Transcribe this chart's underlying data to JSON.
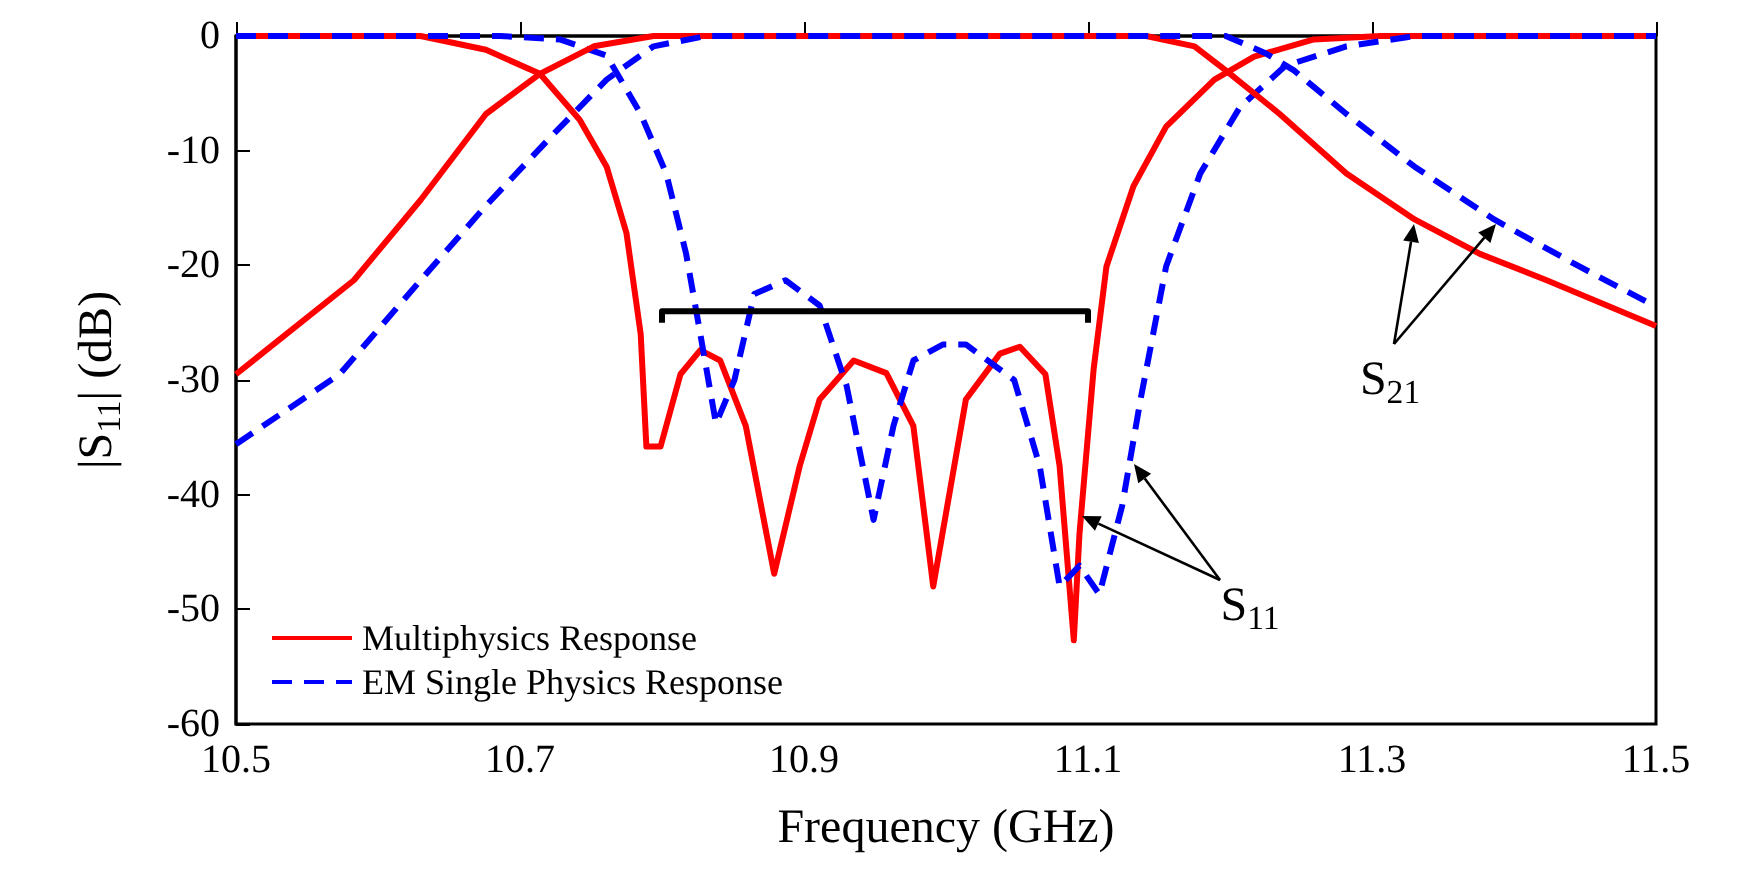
{
  "chart_data": {
    "type": "line",
    "xlabel": "Frequency (GHz)",
    "ylabel": "|S$_{11}$| (dB)",
    "xlim": [
      10.5,
      11.5
    ],
    "xticks": [
      10.5,
      10.7,
      10.9,
      11.1,
      11.3,
      11.5
    ],
    "ylim": [
      -60,
      0
    ],
    "yticks": [
      -60,
      -50,
      -40,
      -30,
      -20,
      -10,
      0
    ],
    "grid": false,
    "legend": "bottom left",
    "marker": "none",
    "series": [
      {
        "name": "Multiphysics Response",
        "color": "#ff0000",
        "line_style": "solid",
        "x": [
          10.5,
          10.63,
          10.676,
          10.714,
          10.742,
          10.761,
          10.775,
          10.785,
          10.789,
          10.799,
          10.813,
          10.827,
          10.841,
          10.859,
          10.879,
          10.897,
          10.911,
          10.935,
          10.958,
          10.977,
          10.991,
          11.014,
          11.038,
          11.052,
          11.07,
          11.08,
          11.09,
          11.094,
          11.104,
          11.113,
          11.132,
          11.155,
          11.189,
          11.217,
          11.259,
          11.306,
          11.5
        ],
        "values": [
          0,
          0,
          -1.2,
          -3.3,
          -7.3,
          -11.4,
          -17.2,
          -26,
          -35.8,
          -35.8,
          -29.5,
          -27.4,
          -28.3,
          -34,
          -46.9,
          -37.5,
          -31.7,
          -28.3,
          -29.4,
          -34,
          -48,
          -31.7,
          -27.7,
          -27.1,
          -29.5,
          -37.5,
          -52.7,
          -43.4,
          -29,
          -20.1,
          -13.1,
          -7.9,
          -3.8,
          -1.8,
          -0.3,
          0,
          0
        ]
      },
      {
        "name": "EM Single Physics Response",
        "color": "#0000ff",
        "line_style": "dashed",
        "x": [
          10.5,
          10.686,
          10.728,
          10.761,
          10.785,
          10.803,
          10.817,
          10.827,
          10.838,
          10.851,
          10.865,
          10.887,
          10.911,
          10.93,
          10.949,
          10.963,
          10.977,
          10.998,
          11.014,
          11.048,
          11.066,
          11.08,
          11.094,
          11.108,
          11.124,
          11.137,
          11.155,
          11.179,
          11.207,
          11.239,
          11.282,
          11.33,
          11.5
        ],
        "values": [
          0,
          0,
          -0.3,
          -1.7,
          -6.8,
          -12,
          -19,
          -26,
          -33.8,
          -30,
          -22.5,
          -21.3,
          -23.5,
          -30.5,
          -42.2,
          -34,
          -28.3,
          -26.9,
          -26.9,
          -30,
          -37.5,
          -48,
          -46.2,
          -48.7,
          -41,
          -31.7,
          -20.1,
          -12,
          -6.2,
          -2.6,
          -0.9,
          0,
          0
        ]
      },
      {
        "color": "#ff0000",
        "line_style": "solid",
        "x": [
          10.5,
          10.583,
          10.63,
          10.676,
          10.714,
          10.752,
          10.794,
          11.141,
          11.175,
          11.197,
          11.235,
          11.282,
          11.33,
          11.376,
          11.423,
          11.5
        ],
        "values": [
          -29.5,
          -21.3,
          -14.3,
          -6.8,
          -3.3,
          -0.9,
          0,
          0,
          -0.9,
          -3,
          -6.8,
          -12,
          -16,
          -19,
          -21.3,
          -25.3
        ]
      },
      {
        "color": "#0000ff",
        "line_style": "dashed",
        "x": [
          10.5,
          10.573,
          10.63,
          10.676,
          10.724,
          10.761,
          10.794,
          10.831,
          11.197,
          11.225,
          11.245,
          11.282,
          11.33,
          11.386,
          11.446,
          11.5
        ],
        "values": [
          -35.6,
          -29.5,
          -21.3,
          -14.8,
          -8.5,
          -3.8,
          -0.9,
          0,
          0,
          -1.5,
          -3,
          -6.8,
          -11.4,
          -16,
          -20.1,
          -23.6
        ]
      },
      {
        "color": "#000000",
        "line_style": "solid",
        "x": [
          10.8,
          10.8,
          11.1,
          11.1
        ],
        "values": [
          -25,
          -24,
          -24,
          -25
        ]
      }
    ],
    "annotations": [
      "S$_{11}$",
      "S$_{21}$"
    ]
  }
}
